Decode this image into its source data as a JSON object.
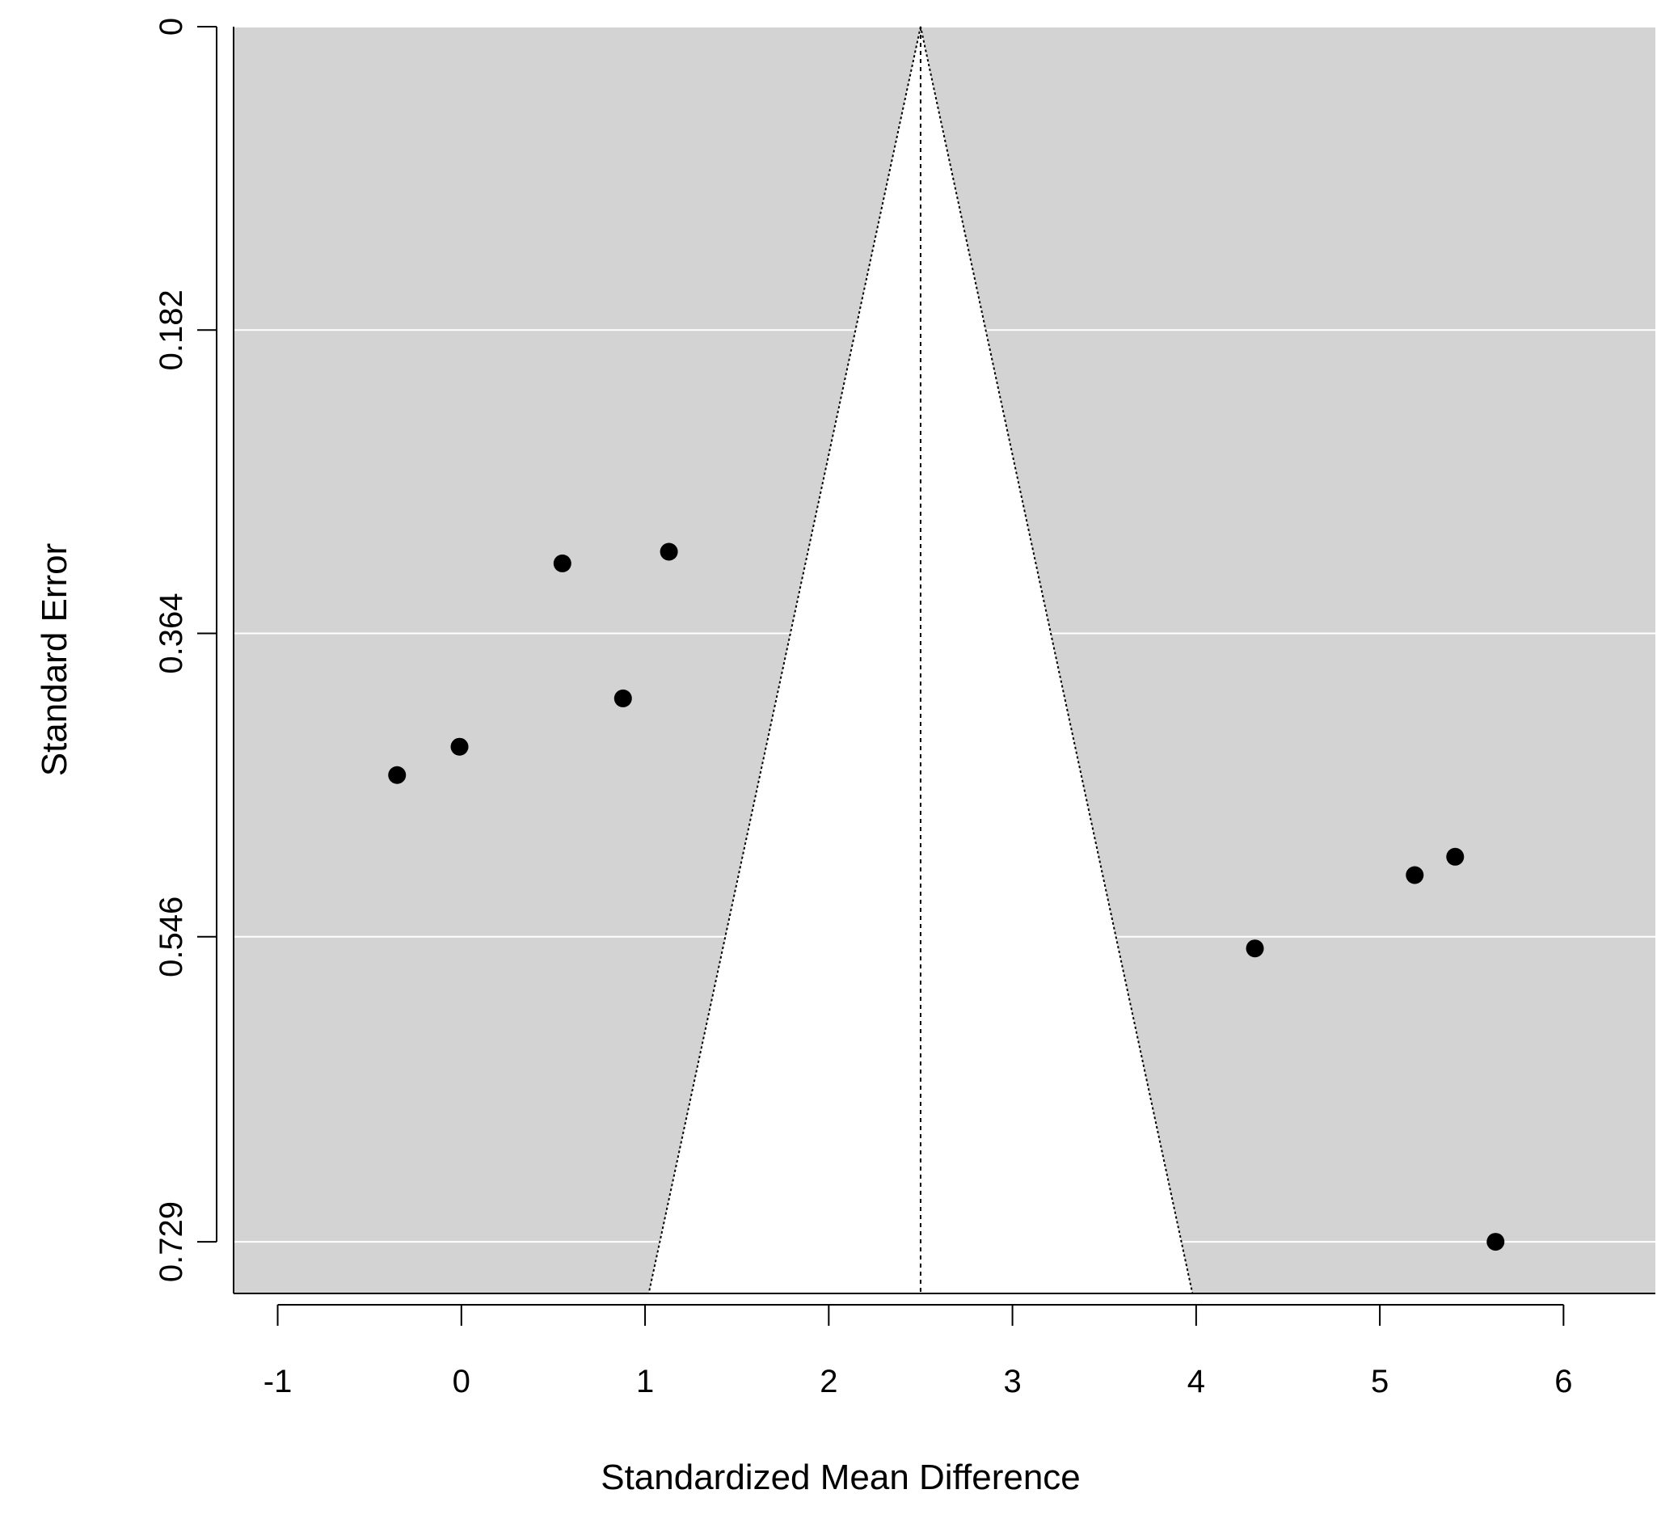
{
  "chart_data": {
    "type": "scatter",
    "subtype": "funnel",
    "title": "",
    "xlabel": "Standardized Mean Difference",
    "ylabel": "Standard Error",
    "xlim": [
      -1.24,
      6.5
    ],
    "ylim": [
      0.76,
      0.0
    ],
    "y_axis_reversed": true,
    "x_ticks": [
      -1,
      0,
      1,
      2,
      3,
      4,
      5,
      6
    ],
    "x_tick_labels": [
      "-1",
      "0",
      "1",
      "2",
      "3",
      "4",
      "5",
      "6"
    ],
    "y_ticks": [
      0,
      0.182,
      0.364,
      0.546,
      0.729
    ],
    "y_tick_labels": [
      "0",
      "0.182",
      "0.364",
      "0.546",
      "0.729"
    ],
    "grid": "horizontal",
    "background_color": "#d3d3d3",
    "funnel_fill_color": "#ffffff",
    "point_color": "#000000",
    "summary_estimate": 2.5,
    "funnel": {
      "apex": [
        2.5,
        0.0
      ],
      "bottom_left": [
        1.02,
        0.76
      ],
      "bottom_right": [
        3.98,
        0.76
      ]
    },
    "points": [
      {
        "x": -0.35,
        "y": 0.449
      },
      {
        "x": -0.01,
        "y": 0.432
      },
      {
        "x": 0.55,
        "y": 0.322
      },
      {
        "x": 1.13,
        "y": 0.315
      },
      {
        "x": 0.88,
        "y": 0.403
      },
      {
        "x": 4.32,
        "y": 0.553
      },
      {
        "x": 5.19,
        "y": 0.509
      },
      {
        "x": 5.41,
        "y": 0.498
      },
      {
        "x": 5.63,
        "y": 0.729
      }
    ]
  }
}
